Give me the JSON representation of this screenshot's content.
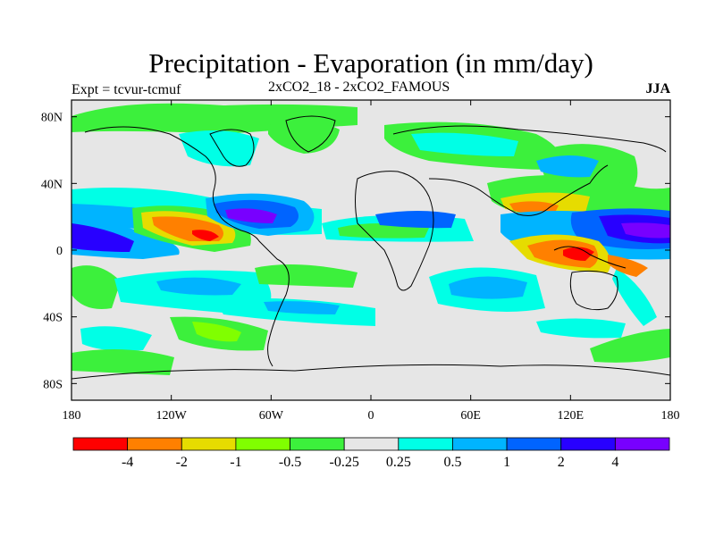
{
  "title": "Precipitation - Evaporation (in mm/day)",
  "experiment": "Expt = tcvur-tcmuf",
  "subtitle": "2xCO2_18 - 2xCO2_FAMOUS",
  "season": "JJA",
  "axes": {
    "lat_ticks": [
      {
        "value": 80,
        "label": "80N"
      },
      {
        "value": 40,
        "label": "40N"
      },
      {
        "value": 0,
        "label": "0"
      },
      {
        "value": -40,
        "label": "40S"
      },
      {
        "value": -80,
        "label": "80S"
      }
    ],
    "lon_ticks": [
      {
        "value": -180,
        "label": "180"
      },
      {
        "value": -120,
        "label": "120W"
      },
      {
        "value": -60,
        "label": "60W"
      },
      {
        "value": 0,
        "label": "0"
      },
      {
        "value": 60,
        "label": "60E"
      },
      {
        "value": 120,
        "label": "120E"
      },
      {
        "value": 180,
        "label": "180"
      }
    ],
    "lon_range": [
      -180,
      180
    ],
    "lat_range": [
      -90,
      90
    ]
  },
  "colorbar": {
    "colors": [
      "#ff0000",
      "#ff8000",
      "#e6dc00",
      "#80ff00",
      "#3cf03c",
      "#e6e6e6",
      "#00ffe6",
      "#00b4ff",
      "#0064ff",
      "#2800ff",
      "#7800ff"
    ],
    "labels": [
      "-4",
      "-2",
      "-1",
      "-0.5",
      "-0.25",
      "0.25",
      "0.5",
      "1",
      "2",
      "4"
    ]
  }
}
